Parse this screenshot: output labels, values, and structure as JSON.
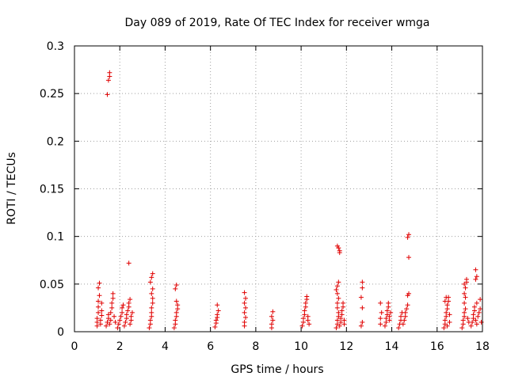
{
  "chart_data": {
    "type": "scatter",
    "title": "Day 089 of 2019, Rate Of TEC Index for receiver wmga",
    "xlabel": "GPS time / hours",
    "ylabel": "ROTI / TECUs",
    "xlim": [
      0,
      18
    ],
    "ylim": [
      0,
      0.3
    ],
    "xticks": [
      0,
      2,
      4,
      6,
      8,
      10,
      12,
      14,
      16,
      18
    ],
    "yticks": [
      0,
      0.05,
      0.1,
      0.15,
      0.2,
      0.25,
      0.3
    ],
    "xtick_labels": [
      "0",
      "2",
      "4",
      "6",
      "8",
      "10",
      "12",
      "14",
      "16",
      "18"
    ],
    "ytick_labels": [
      "0",
      "0.05",
      "0.1",
      "0.15",
      "0.2",
      "0.25",
      "0.3"
    ],
    "grid": true,
    "marker": "+",
    "color": "#e00000",
    "series": [
      {
        "name": "ROTI",
        "points": [
          [
            1.0,
            0.006
          ],
          [
            1.0,
            0.01
          ],
          [
            1.0,
            0.014
          ],
          [
            1.05,
            0.02
          ],
          [
            1.05,
            0.026
          ],
          [
            1.05,
            0.032
          ],
          [
            1.1,
            0.038
          ],
          [
            1.05,
            0.046
          ],
          [
            1.1,
            0.051
          ],
          [
            1.15,
            0.008
          ],
          [
            1.15,
            0.012
          ],
          [
            1.2,
            0.017
          ],
          [
            1.2,
            0.022
          ],
          [
            1.2,
            0.03
          ],
          [
            1.45,
            0.249
          ],
          [
            1.5,
            0.264
          ],
          [
            1.55,
            0.268
          ],
          [
            1.55,
            0.272
          ],
          [
            1.4,
            0.006
          ],
          [
            1.45,
            0.01
          ],
          [
            1.5,
            0.014
          ],
          [
            1.5,
            0.018
          ],
          [
            1.55,
            0.008
          ],
          [
            1.6,
            0.012
          ],
          [
            1.6,
            0.02
          ],
          [
            1.65,
            0.025
          ],
          [
            1.65,
            0.03
          ],
          [
            1.7,
            0.035
          ],
          [
            1.7,
            0.04
          ],
          [
            1.75,
            0.016
          ],
          [
            1.8,
            0.01
          ],
          [
            1.9,
            0.004
          ],
          [
            1.95,
            0.008
          ],
          [
            2.0,
            0.012
          ],
          [
            2.05,
            0.016
          ],
          [
            2.1,
            0.02
          ],
          [
            2.1,
            0.025
          ],
          [
            2.15,
            0.028
          ],
          [
            2.2,
            0.006
          ],
          [
            2.25,
            0.01
          ],
          [
            2.3,
            0.014
          ],
          [
            2.3,
            0.018
          ],
          [
            2.35,
            0.022
          ],
          [
            2.4,
            0.026
          ],
          [
            2.4,
            0.03
          ],
          [
            2.45,
            0.034
          ],
          [
            2.45,
            0.008
          ],
          [
            2.5,
            0.012
          ],
          [
            2.5,
            0.016
          ],
          [
            2.55,
            0.02
          ],
          [
            2.4,
            0.072
          ],
          [
            3.3,
            0.004
          ],
          [
            3.35,
            0.008
          ],
          [
            3.35,
            0.012
          ],
          [
            3.4,
            0.016
          ],
          [
            3.4,
            0.02
          ],
          [
            3.4,
            0.025
          ],
          [
            3.45,
            0.03
          ],
          [
            3.45,
            0.035
          ],
          [
            3.4,
            0.04
          ],
          [
            3.45,
            0.045
          ],
          [
            3.35,
            0.052
          ],
          [
            3.4,
            0.057
          ],
          [
            3.45,
            0.061
          ],
          [
            4.4,
            0.004
          ],
          [
            4.45,
            0.008
          ],
          [
            4.45,
            0.012
          ],
          [
            4.5,
            0.016
          ],
          [
            4.5,
            0.02
          ],
          [
            4.55,
            0.024
          ],
          [
            4.55,
            0.028
          ],
          [
            4.5,
            0.032
          ],
          [
            4.45,
            0.045
          ],
          [
            4.5,
            0.049
          ],
          [
            6.2,
            0.005
          ],
          [
            6.25,
            0.009
          ],
          [
            6.25,
            0.012
          ],
          [
            6.3,
            0.015
          ],
          [
            6.3,
            0.018
          ],
          [
            6.35,
            0.022
          ],
          [
            6.3,
            0.028
          ],
          [
            7.5,
            0.006
          ],
          [
            7.5,
            0.01
          ],
          [
            7.55,
            0.015
          ],
          [
            7.5,
            0.02
          ],
          [
            7.55,
            0.025
          ],
          [
            7.5,
            0.03
          ],
          [
            7.55,
            0.035
          ],
          [
            7.5,
            0.041
          ],
          [
            8.7,
            0.004
          ],
          [
            8.7,
            0.008
          ],
          [
            8.75,
            0.012
          ],
          [
            8.7,
            0.016
          ],
          [
            8.75,
            0.021
          ],
          [
            10.05,
            0.006
          ],
          [
            10.1,
            0.01
          ],
          [
            10.1,
            0.014
          ],
          [
            10.15,
            0.018
          ],
          [
            10.15,
            0.022
          ],
          [
            10.2,
            0.026
          ],
          [
            10.2,
            0.03
          ],
          [
            10.25,
            0.034
          ],
          [
            10.25,
            0.037
          ],
          [
            10.3,
            0.012
          ],
          [
            10.3,
            0.016
          ],
          [
            10.35,
            0.008
          ],
          [
            11.55,
            0.004
          ],
          [
            11.6,
            0.008
          ],
          [
            11.6,
            0.012
          ],
          [
            11.65,
            0.016
          ],
          [
            11.65,
            0.02
          ],
          [
            11.6,
            0.025
          ],
          [
            11.6,
            0.03
          ],
          [
            11.65,
            0.035
          ],
          [
            11.6,
            0.04
          ],
          [
            11.55,
            0.044
          ],
          [
            11.6,
            0.048
          ],
          [
            11.65,
            0.052
          ],
          [
            11.7,
            0.006
          ],
          [
            11.75,
            0.01
          ],
          [
            11.75,
            0.014
          ],
          [
            11.8,
            0.018
          ],
          [
            11.8,
            0.022
          ],
          [
            11.85,
            0.026
          ],
          [
            11.85,
            0.03
          ],
          [
            11.9,
            0.012
          ],
          [
            11.9,
            0.008
          ],
          [
            11.6,
            0.09
          ],
          [
            11.65,
            0.088
          ],
          [
            11.7,
            0.085
          ],
          [
            11.7,
            0.083
          ],
          [
            12.65,
            0.006
          ],
          [
            12.7,
            0.01
          ],
          [
            12.7,
            0.025
          ],
          [
            12.65,
            0.036
          ],
          [
            12.7,
            0.046
          ],
          [
            12.7,
            0.052
          ],
          [
            13.5,
            0.008
          ],
          [
            13.5,
            0.014
          ],
          [
            13.55,
            0.02
          ],
          [
            13.5,
            0.03
          ],
          [
            13.7,
            0.006
          ],
          [
            13.75,
            0.01
          ],
          [
            13.75,
            0.014
          ],
          [
            13.8,
            0.018
          ],
          [
            13.8,
            0.022
          ],
          [
            13.85,
            0.026
          ],
          [
            13.85,
            0.03
          ],
          [
            13.9,
            0.012
          ],
          [
            13.9,
            0.016
          ],
          [
            13.95,
            0.02
          ],
          [
            14.3,
            0.004
          ],
          [
            14.35,
            0.008
          ],
          [
            14.4,
            0.012
          ],
          [
            14.4,
            0.016
          ],
          [
            14.45,
            0.02
          ],
          [
            14.5,
            0.008
          ],
          [
            14.55,
            0.012
          ],
          [
            14.6,
            0.016
          ],
          [
            14.6,
            0.02
          ],
          [
            14.65,
            0.024
          ],
          [
            14.7,
            0.028
          ],
          [
            14.7,
            0.038
          ],
          [
            14.75,
            0.04
          ],
          [
            14.75,
            0.078
          ],
          [
            14.7,
            0.099
          ],
          [
            14.75,
            0.102
          ],
          [
            16.3,
            0.004
          ],
          [
            16.35,
            0.008
          ],
          [
            16.35,
            0.012
          ],
          [
            16.4,
            0.016
          ],
          [
            16.4,
            0.02
          ],
          [
            16.45,
            0.024
          ],
          [
            16.45,
            0.028
          ],
          [
            16.5,
            0.032
          ],
          [
            16.5,
            0.036
          ],
          [
            16.55,
            0.018
          ],
          [
            16.55,
            0.01
          ],
          [
            16.4,
            0.036
          ],
          [
            16.35,
            0.032
          ],
          [
            16.45,
            0.006
          ],
          [
            17.1,
            0.004
          ],
          [
            17.15,
            0.008
          ],
          [
            17.15,
            0.012
          ],
          [
            17.2,
            0.016
          ],
          [
            17.2,
            0.02
          ],
          [
            17.25,
            0.024
          ],
          [
            17.2,
            0.03
          ],
          [
            17.25,
            0.036
          ],
          [
            17.2,
            0.04
          ],
          [
            17.25,
            0.046
          ],
          [
            17.2,
            0.05
          ],
          [
            17.3,
            0.052
          ],
          [
            17.3,
            0.055
          ],
          [
            17.35,
            0.014
          ],
          [
            17.4,
            0.01
          ],
          [
            17.5,
            0.006
          ],
          [
            17.55,
            0.01
          ],
          [
            17.6,
            0.014
          ],
          [
            17.6,
            0.018
          ],
          [
            17.65,
            0.022
          ],
          [
            17.65,
            0.026
          ],
          [
            17.7,
            0.012
          ],
          [
            17.75,
            0.008
          ],
          [
            17.75,
            0.03
          ],
          [
            17.7,
            0.055
          ],
          [
            17.75,
            0.058
          ],
          [
            17.7,
            0.065
          ],
          [
            17.8,
            0.016
          ],
          [
            17.85,
            0.02
          ],
          [
            17.9,
            0.024
          ],
          [
            17.9,
            0.034
          ],
          [
            17.95,
            0.01
          ]
        ]
      }
    ]
  }
}
